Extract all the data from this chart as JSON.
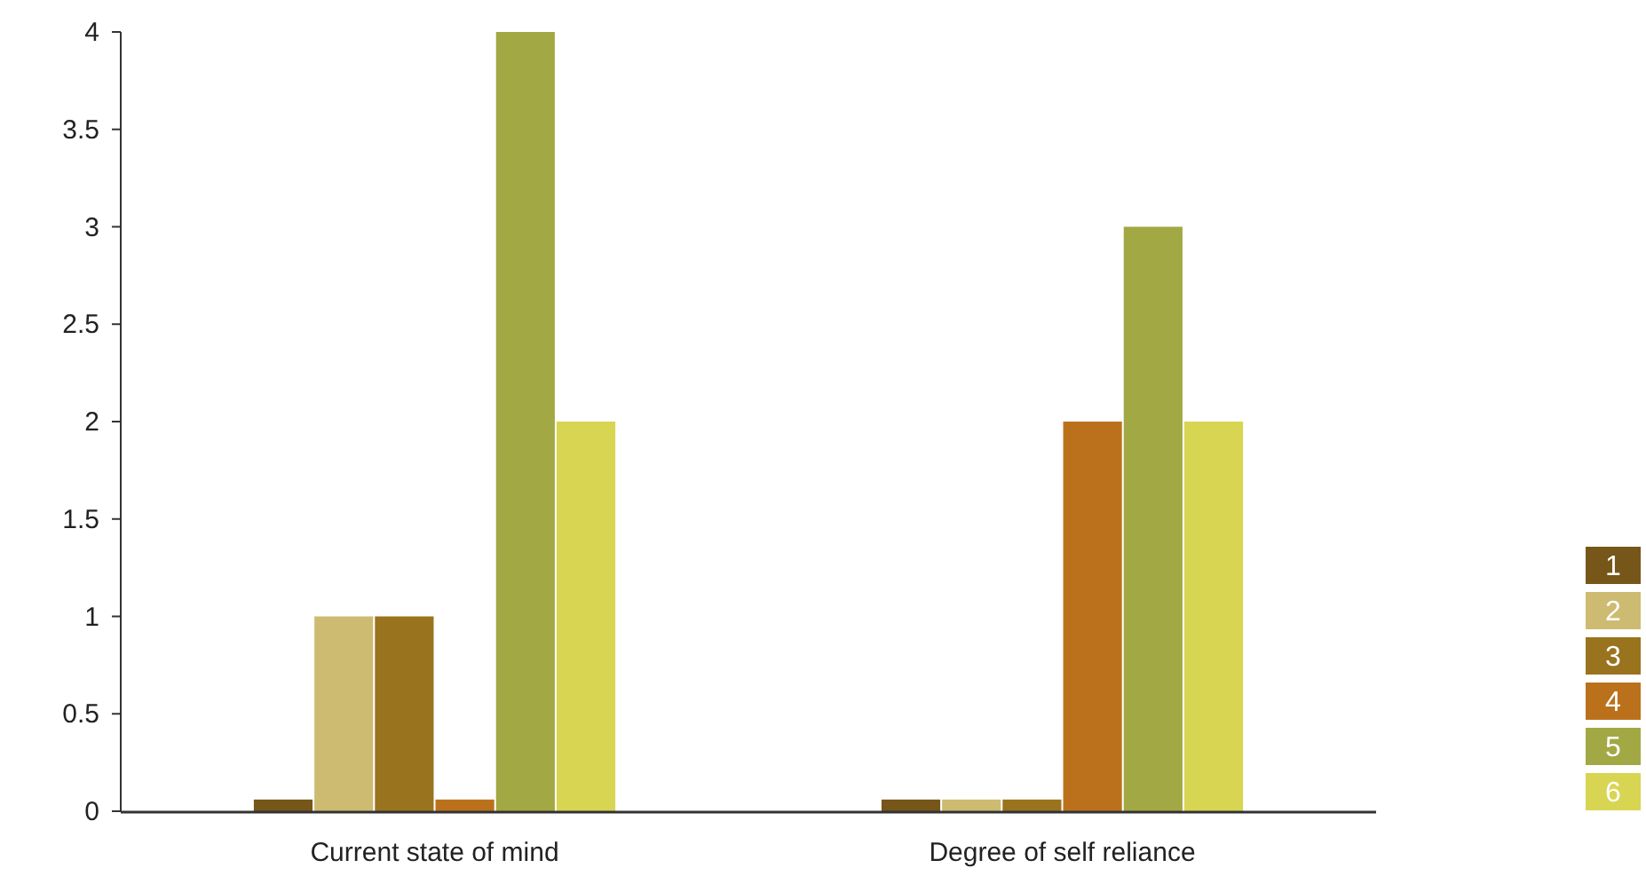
{
  "chart_data": {
    "type": "bar",
    "categories": [
      "Current state of mind",
      "Degree of self reliance"
    ],
    "series": [
      {
        "name": "1",
        "color": "#77561a",
        "values": [
          0.06,
          0.06
        ]
      },
      {
        "name": "2",
        "color": "#cdbb72",
        "values": [
          1,
          0.06
        ]
      },
      {
        "name": "3",
        "color": "#9a731e",
        "values": [
          1,
          0.06
        ]
      },
      {
        "name": "4",
        "color": "#bb711c",
        "values": [
          0.06,
          2
        ]
      },
      {
        "name": "5",
        "color": "#a2a843",
        "values": [
          4,
          3
        ]
      },
      {
        "name": "6",
        "color": "#d8d552",
        "values": [
          2,
          2
        ]
      }
    ],
    "ylim": [
      0,
      4
    ],
    "yticks": [
      0,
      0.5,
      1,
      1.5,
      2,
      2.5,
      3,
      3.5,
      4
    ],
    "grid": false,
    "legend": "right"
  }
}
